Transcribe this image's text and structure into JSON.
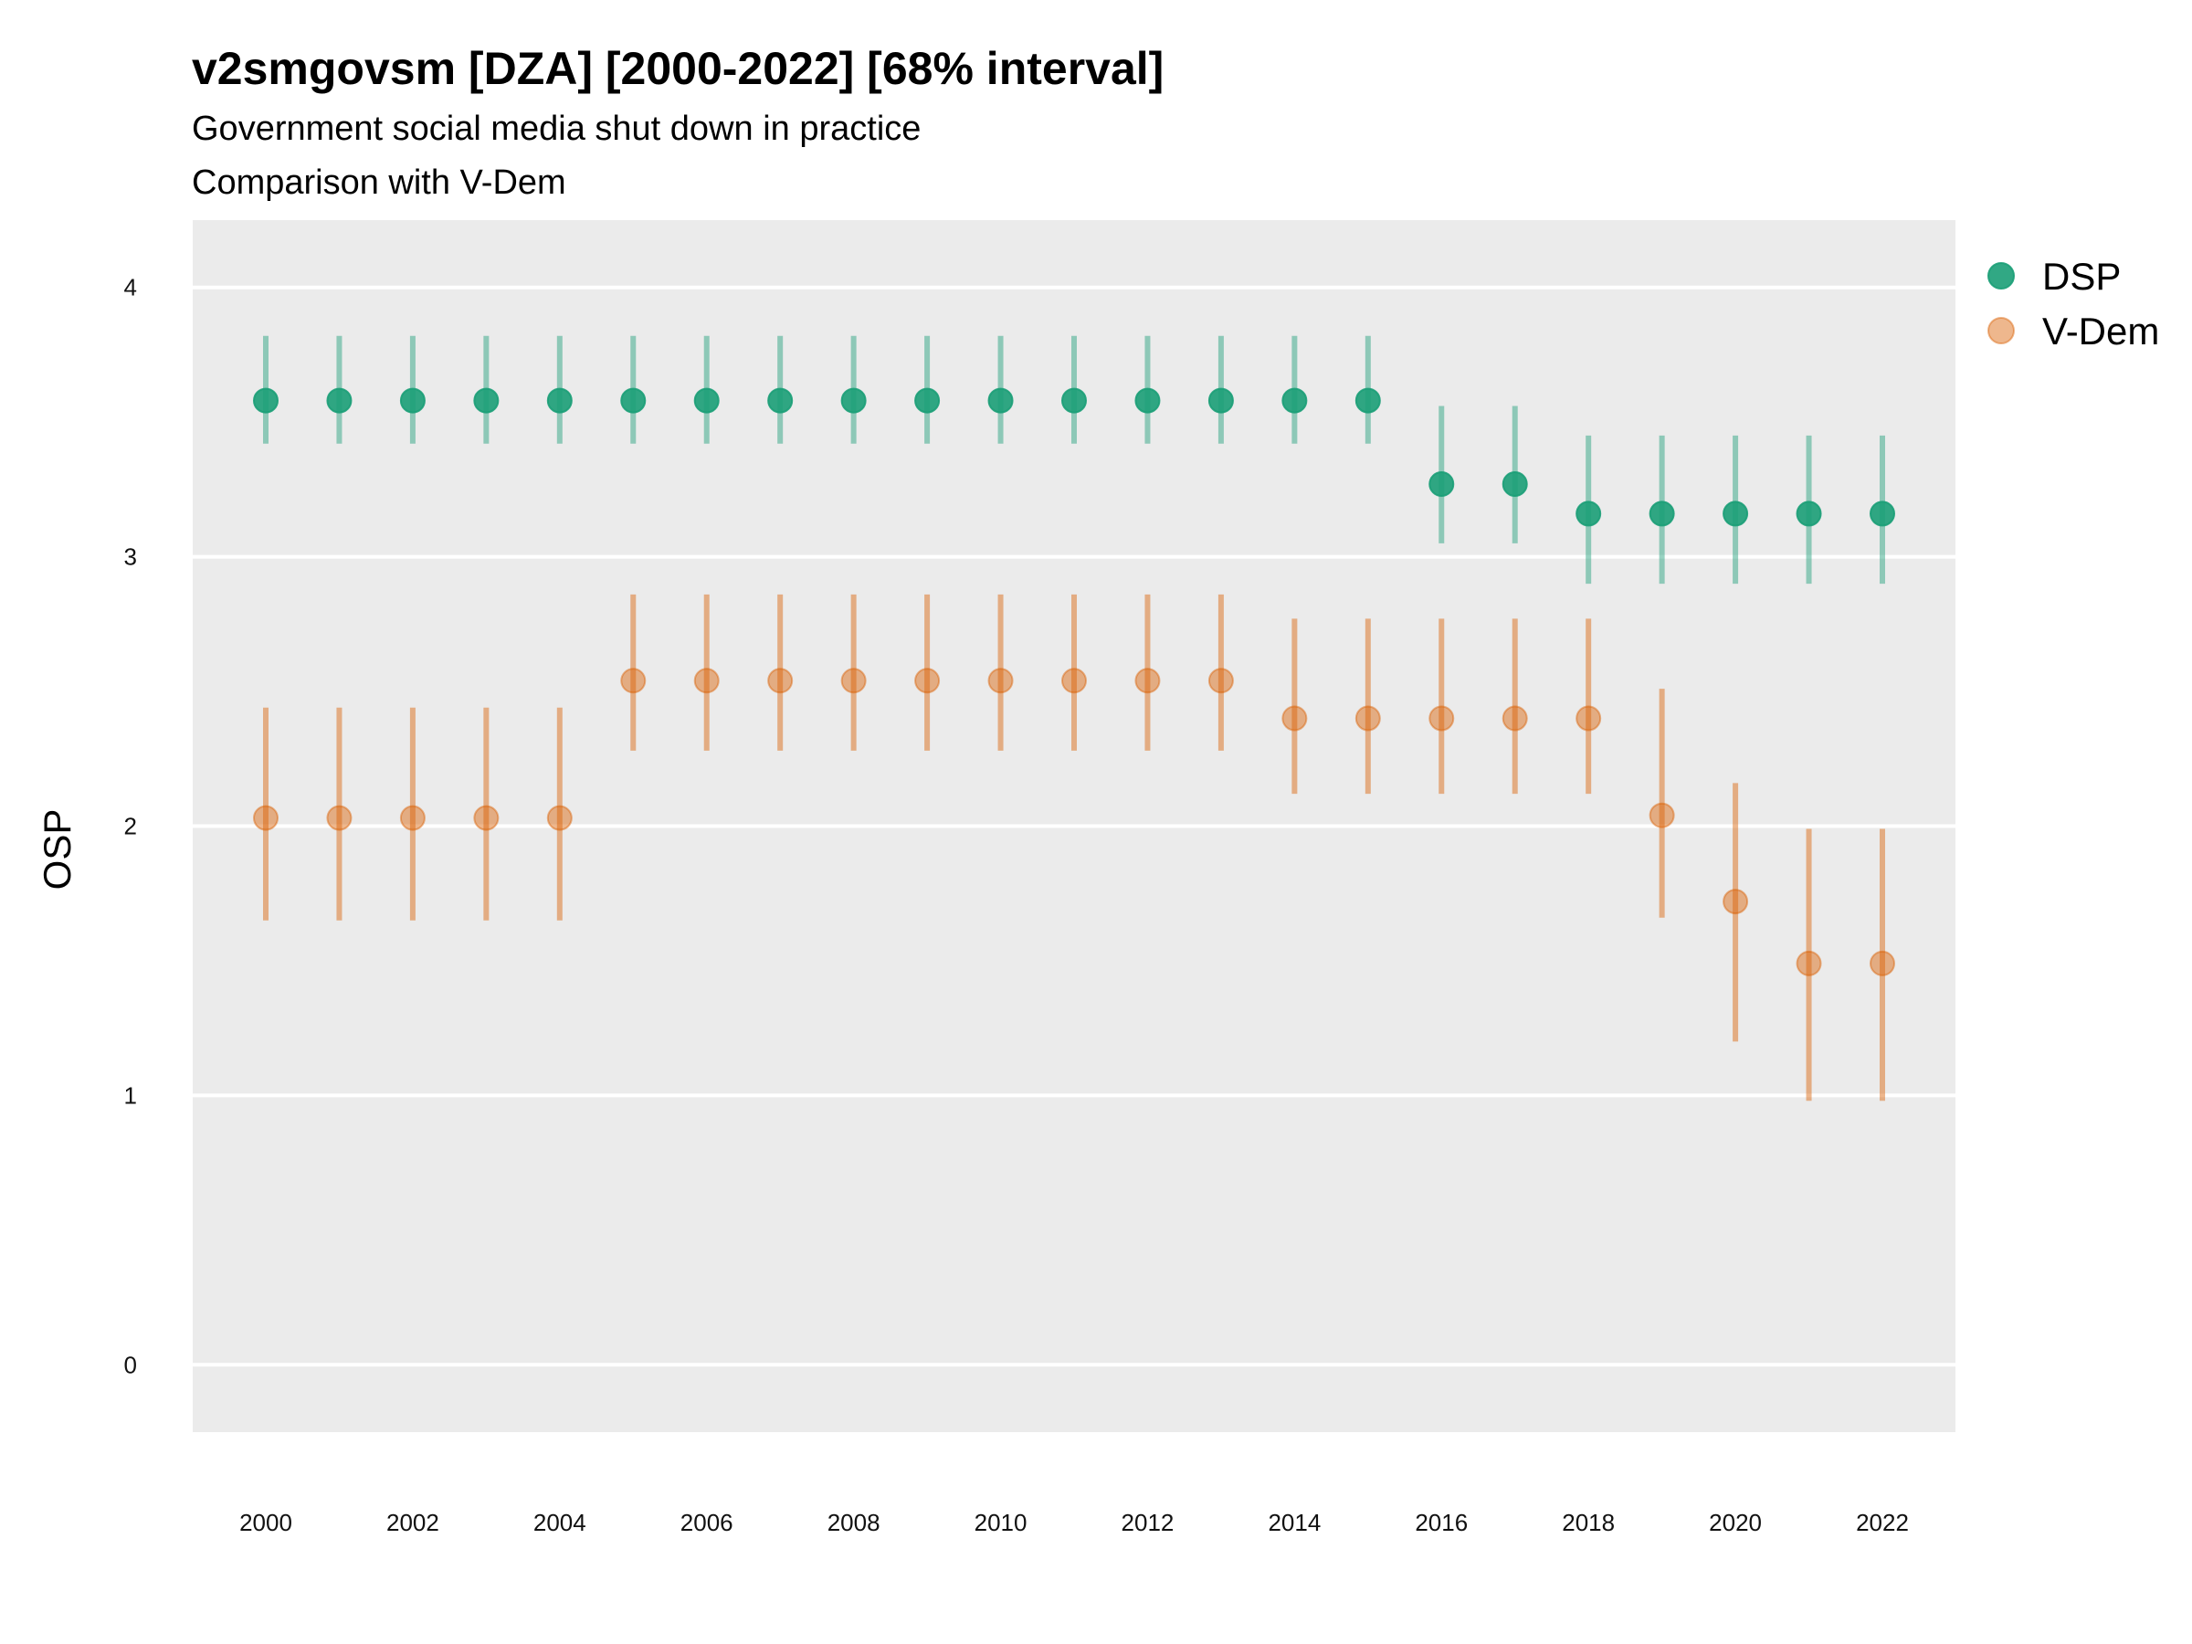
{
  "chart_data": {
    "type": "scatter",
    "title": "v2smgovsm [DZA] [2000-2022] [68% interval]",
    "subtitle": "Government social media shut down in practice",
    "subtitle2": "Comparison with V-Dem",
    "xlabel": "",
    "ylabel": "OSP",
    "ylim": [
      -0.25,
      4.25
    ],
    "yticks": [
      "0",
      "1",
      "2",
      "3",
      "4"
    ],
    "xticks": [
      "2000",
      "2002",
      "2004",
      "2006",
      "2008",
      "2010",
      "2012",
      "2014",
      "2016",
      "2018",
      "2020",
      "2022"
    ],
    "x": [
      2000,
      2001,
      2002,
      2003,
      2004,
      2005,
      2006,
      2007,
      2008,
      2009,
      2010,
      2011,
      2012,
      2013,
      2014,
      2015,
      2016,
      2017,
      2018,
      2019,
      2020,
      2021,
      2022
    ],
    "grid": true,
    "legend_position": "right",
    "series": [
      {
        "name": "DSP",
        "color": "#1b9e77",
        "values": [
          3.58,
          3.58,
          3.58,
          3.58,
          3.58,
          3.58,
          3.58,
          3.58,
          3.58,
          3.58,
          3.58,
          3.58,
          3.58,
          3.58,
          3.58,
          3.58,
          3.27,
          3.27,
          3.16,
          3.16,
          3.16,
          3.16,
          3.16
        ],
        "lower": [
          3.42,
          3.42,
          3.42,
          3.42,
          3.42,
          3.42,
          3.42,
          3.42,
          3.42,
          3.42,
          3.42,
          3.42,
          3.42,
          3.42,
          3.42,
          3.42,
          3.05,
          3.05,
          2.9,
          2.9,
          2.9,
          2.9,
          2.9
        ],
        "upper": [
          3.82,
          3.82,
          3.82,
          3.82,
          3.82,
          3.82,
          3.82,
          3.82,
          3.82,
          3.82,
          3.82,
          3.82,
          3.82,
          3.82,
          3.82,
          3.82,
          3.56,
          3.56,
          3.45,
          3.45,
          3.45,
          3.45,
          3.45
        ]
      },
      {
        "name": "V-Dem",
        "color": "#d95f02",
        "values": [
          2.03,
          2.03,
          2.03,
          2.03,
          2.03,
          2.54,
          2.54,
          2.54,
          2.54,
          2.54,
          2.54,
          2.54,
          2.54,
          2.54,
          2.4,
          2.4,
          2.4,
          2.4,
          2.4,
          2.04,
          1.72,
          1.49,
          1.49
        ],
        "lower": [
          1.65,
          1.65,
          1.65,
          1.65,
          1.65,
          2.28,
          2.28,
          2.28,
          2.28,
          2.28,
          2.28,
          2.28,
          2.28,
          2.28,
          2.12,
          2.12,
          2.12,
          2.12,
          2.12,
          1.66,
          1.2,
          0.98,
          0.98
        ],
        "upper": [
          2.44,
          2.44,
          2.44,
          2.44,
          2.44,
          2.86,
          2.86,
          2.86,
          2.86,
          2.86,
          2.86,
          2.86,
          2.86,
          2.86,
          2.77,
          2.77,
          2.77,
          2.77,
          2.77,
          2.51,
          2.16,
          1.99,
          1.99
        ]
      }
    ]
  }
}
